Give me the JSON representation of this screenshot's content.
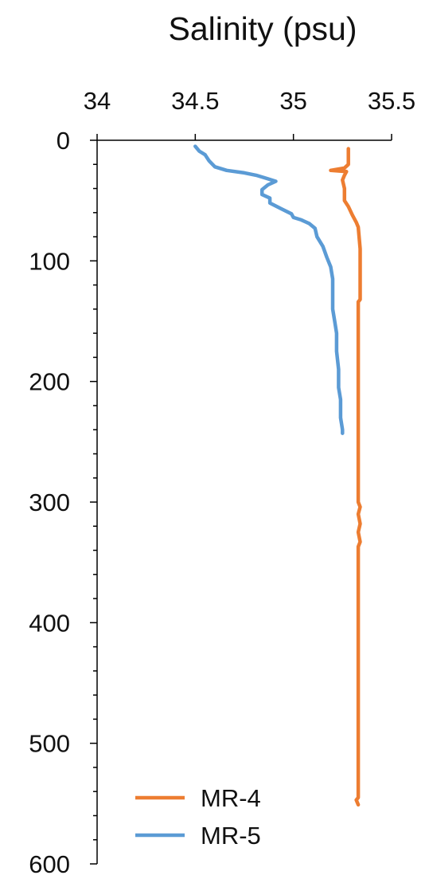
{
  "chart_data": {
    "type": "line",
    "title": "Salinity (psu)",
    "xlabel": "",
    "ylabel": "",
    "xlim": [
      34,
      35.5
    ],
    "ylim": [
      0,
      600
    ],
    "y_inverted": true,
    "x_axis_position": "top",
    "x_ticks": [
      34,
      34.5,
      35,
      35.5
    ],
    "x_tick_labels": [
      "34",
      "34.5",
      "35",
      "35.5"
    ],
    "y_ticks": [
      0,
      100,
      200,
      300,
      400,
      500,
      600
    ],
    "y_tick_labels": [
      "0",
      "100",
      "200",
      "300",
      "400",
      "500",
      "600"
    ],
    "y_minor_step": 20,
    "grid": false,
    "legend_position": "bottom-left",
    "series": [
      {
        "name": "MR-4",
        "color": "#ED7D31",
        "points": [
          [
            35.28,
            7
          ],
          [
            35.28,
            20
          ],
          [
            35.26,
            23
          ],
          [
            35.19,
            25
          ],
          [
            35.27,
            26
          ],
          [
            35.26,
            29
          ],
          [
            35.25,
            33
          ],
          [
            35.26,
            40
          ],
          [
            35.26,
            50
          ],
          [
            35.28,
            55
          ],
          [
            35.3,
            62
          ],
          [
            35.32,
            68
          ],
          [
            35.33,
            72
          ],
          [
            35.34,
            90
          ],
          [
            35.34,
            110
          ],
          [
            35.34,
            132
          ],
          [
            35.33,
            134
          ],
          [
            35.33,
            200
          ],
          [
            35.33,
            300
          ],
          [
            35.34,
            304
          ],
          [
            35.33,
            310
          ],
          [
            35.34,
            318
          ],
          [
            35.33,
            325
          ],
          [
            35.34,
            333
          ],
          [
            35.33,
            337
          ],
          [
            35.33,
            450
          ],
          [
            35.33,
            545
          ],
          [
            35.32,
            547
          ],
          [
            35.33,
            551
          ]
        ]
      },
      {
        "name": "MR-5",
        "color": "#5B9BD5",
        "points": [
          [
            34.5,
            5
          ],
          [
            34.52,
            9
          ],
          [
            34.55,
            12
          ],
          [
            34.57,
            17
          ],
          [
            34.6,
            22
          ],
          [
            34.66,
            25
          ],
          [
            34.75,
            27
          ],
          [
            34.81,
            29
          ],
          [
            34.85,
            31
          ],
          [
            34.87,
            32
          ],
          [
            34.91,
            34
          ],
          [
            34.87,
            37
          ],
          [
            34.84,
            41
          ],
          [
            34.84,
            45
          ],
          [
            34.88,
            48
          ],
          [
            34.88,
            52
          ],
          [
            34.94,
            57
          ],
          [
            34.99,
            61
          ],
          [
            35.0,
            64
          ],
          [
            35.04,
            66
          ],
          [
            35.08,
            69
          ],
          [
            35.11,
            73
          ],
          [
            35.12,
            80
          ],
          [
            35.15,
            88
          ],
          [
            35.17,
            97
          ],
          [
            35.19,
            105
          ],
          [
            35.2,
            115
          ],
          [
            35.2,
            140
          ],
          [
            35.21,
            150
          ],
          [
            35.22,
            160
          ],
          [
            35.22,
            175
          ],
          [
            35.23,
            190
          ],
          [
            35.23,
            205
          ],
          [
            35.24,
            215
          ],
          [
            35.24,
            230
          ],
          [
            35.25,
            240
          ],
          [
            35.25,
            243
          ]
        ]
      }
    ]
  }
}
